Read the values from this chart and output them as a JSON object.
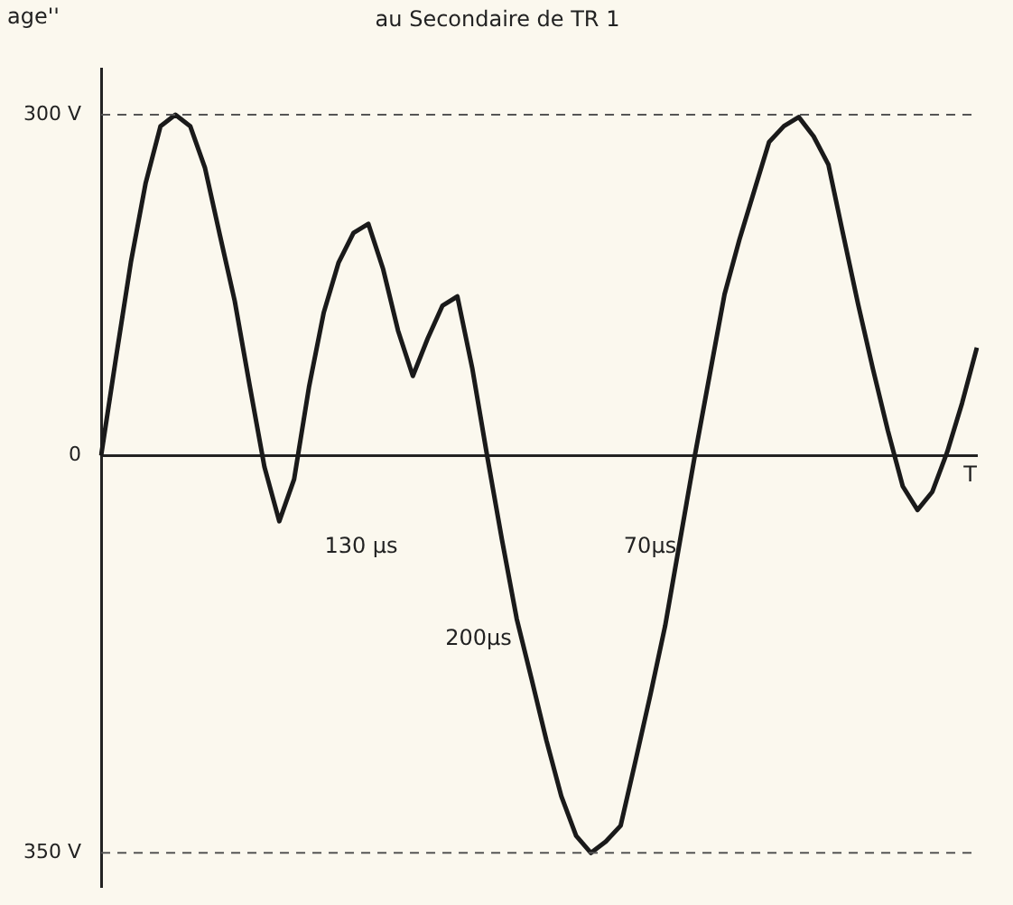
{
  "chart_data": {
    "type": "line",
    "title": "au Secondaire de TR 1",
    "xlabel": "T",
    "categories": [
      null,
      null,
      null,
      null,
      null,
      null,
      null,
      null,
      null,
      null,
      null,
      null,
      null,
      null,
      null,
      null,
      null,
      null,
      null,
      null,
      null,
      null,
      null,
      null,
      null,
      null,
      null,
      null,
      null,
      null,
      null,
      null,
      null,
      null,
      null,
      null,
      null,
      null,
      null,
      null,
      null,
      null,
      null,
      null,
      null,
      null,
      null,
      null,
      null,
      null,
      null,
      null,
      null,
      null,
      null,
      null,
      null,
      null,
      null,
      null
    ],
    "values": [
      0,
      86,
      170,
      240,
      290,
      300,
      290,
      253,
      194,
      136,
      62,
      -10,
      -58,
      -21,
      60,
      126,
      170,
      196,
      204,
      164,
      110,
      70,
      103,
      132,
      140,
      77,
      0,
      -74,
      -144,
      -197,
      -251,
      -300,
      -335,
      -350,
      -340,
      -326,
      -269,
      -211,
      -150,
      -75,
      0,
      71,
      142,
      190,
      233,
      276,
      290,
      298,
      281,
      256,
      194,
      133,
      76,
      22,
      -27,
      -48,
      -32,
      3,
      46,
      95
    ],
    "color": "#1a1a1a",
    "ylim": [
      -380,
      340
    ],
    "yticks": [
      {
        "value": -350,
        "label": "350 V"
      },
      {
        "value": 0,
        "label": "0"
      },
      {
        "value": 300,
        "label": "300 V"
      }
    ],
    "tick_labels": "y",
    "grid": false,
    "legend": false,
    "marker": "none",
    "line_style": "solid",
    "ref_lines": [
      {
        "axis": "y",
        "value": 300,
        "label": null,
        "line_style": "dashed",
        "color": "#555555"
      },
      {
        "axis": "y",
        "value": -350,
        "label": null,
        "line_style": "dashed",
        "color": "#555555"
      }
    ],
    "annotations": [
      "age''",
      "130 µs",
      "70µs",
      "200µs"
    ]
  }
}
